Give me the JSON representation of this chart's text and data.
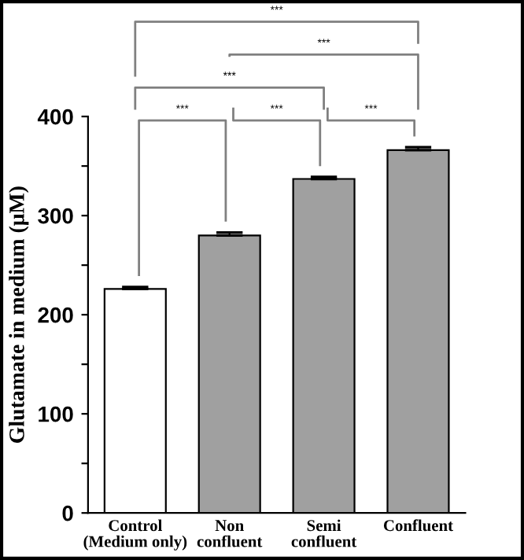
{
  "chart_data": {
    "type": "bar",
    "ylabel": "Glutamate in medium (μM)",
    "categories": [
      "Control\n(Medium only)",
      "Non\nconfluent",
      "Semi\nconfluent",
      "Confluent"
    ],
    "values": [
      226,
      280,
      337,
      366
    ],
    "errors": [
      2,
      3,
      2,
      3
    ],
    "colors": [
      "#ffffff",
      "#a0a0a0",
      "#a0a0a0",
      "#a0a0a0"
    ],
    "ylim": [
      0,
      400
    ],
    "yticks": [
      0,
      {
        "value": 50,
        "label": null
      },
      100,
      {
        "value": 150,
        "label": null
      },
      200,
      {
        "value": 250,
        "label": null
      },
      300,
      {
        "value": 350,
        "label": null
      },
      400
    ],
    "annotations": [
      "***",
      "***",
      "***",
      "***",
      "***",
      "***"
    ],
    "grid": false,
    "legend": false
  }
}
